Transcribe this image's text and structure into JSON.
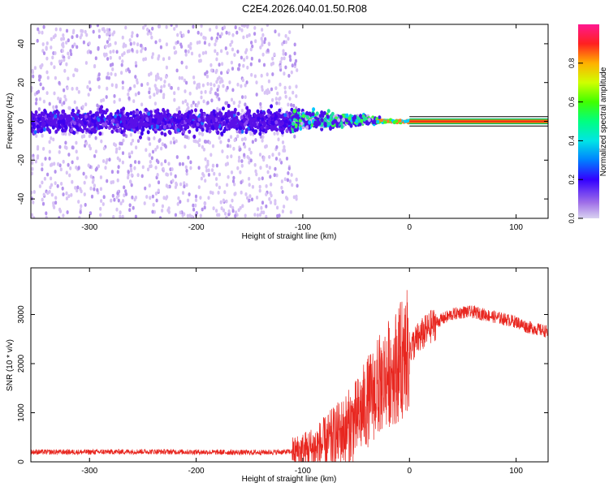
{
  "title": "C2E4.2026.040.01.50.R08",
  "colors": {
    "red_trace": "#e8261f",
    "purple_dense": "#5a10e8",
    "purple_sparse": "#c9a6f2",
    "frame": "#000000",
    "background": "#ffffff"
  },
  "chart_data": [
    {
      "type": "heatmap",
      "xlabel": "Height of straight line (km)",
      "ylabel": "Frequency (Hz)",
      "xlim": [
        -355,
        130
      ],
      "ylim": [
        -50,
        50
      ],
      "xticks": [
        -300,
        -200,
        -100,
        0,
        100
      ],
      "yticks": [
        -40,
        -20,
        0,
        20,
        40
      ],
      "colorbar": {
        "label": "Normalized spectral amplitude",
        "range": [
          0,
          1
        ],
        "ticks": [
          0.0,
          0.2,
          0.4,
          0.6,
          0.8
        ],
        "tick_labels": [
          "0.0",
          "0.2",
          "0.4",
          "0.6",
          "0.8"
        ]
      },
      "regions": [
        {
          "name": "noisy-spread",
          "x_range": [
            -355,
            -105
          ],
          "freq_center": 0,
          "freq_halfwidth": 10,
          "background_spread_hz": 50,
          "amplitude": 0.15
        },
        {
          "name": "transition",
          "x_range": [
            -105,
            -30
          ],
          "freq_center": 0,
          "freq_halfwidth": 6,
          "amplitude": 0.55
        },
        {
          "name": "coherent-tone",
          "x_range": [
            0,
            130
          ],
          "freq_center": 0,
          "freq_halfwidth": 1,
          "amplitude": 1.0
        }
      ]
    },
    {
      "type": "line",
      "xlabel": "Height of straight line (km)",
      "ylabel": "SNR (10 * v/v)",
      "xlim": [
        -355,
        130
      ],
      "ylim": [
        0,
        3950
      ],
      "xticks": [
        -300,
        -200,
        -100,
        0,
        100
      ],
      "yticks": [
        0,
        1000,
        2000,
        3000
      ],
      "series": [
        {
          "name": "SNR",
          "color": "#e8261f",
          "x": [
            -355,
            -300,
            -250,
            -200,
            -150,
            -120,
            -100,
            -90,
            -80,
            -70,
            -60,
            -50,
            -40,
            -30,
            -20,
            -10,
            0,
            10,
            20,
            30,
            40,
            50,
            60,
            70,
            80,
            90,
            100,
            110,
            120,
            130
          ],
          "y": [
            200,
            200,
            210,
            200,
            190,
            200,
            220,
            260,
            350,
            500,
            650,
            850,
            1200,
            1500,
            1800,
            2000,
            2300,
            2550,
            2750,
            2900,
            3000,
            3050,
            3050,
            3000,
            2950,
            2900,
            2850,
            2750,
            2700,
            2650
          ]
        }
      ]
    }
  ]
}
